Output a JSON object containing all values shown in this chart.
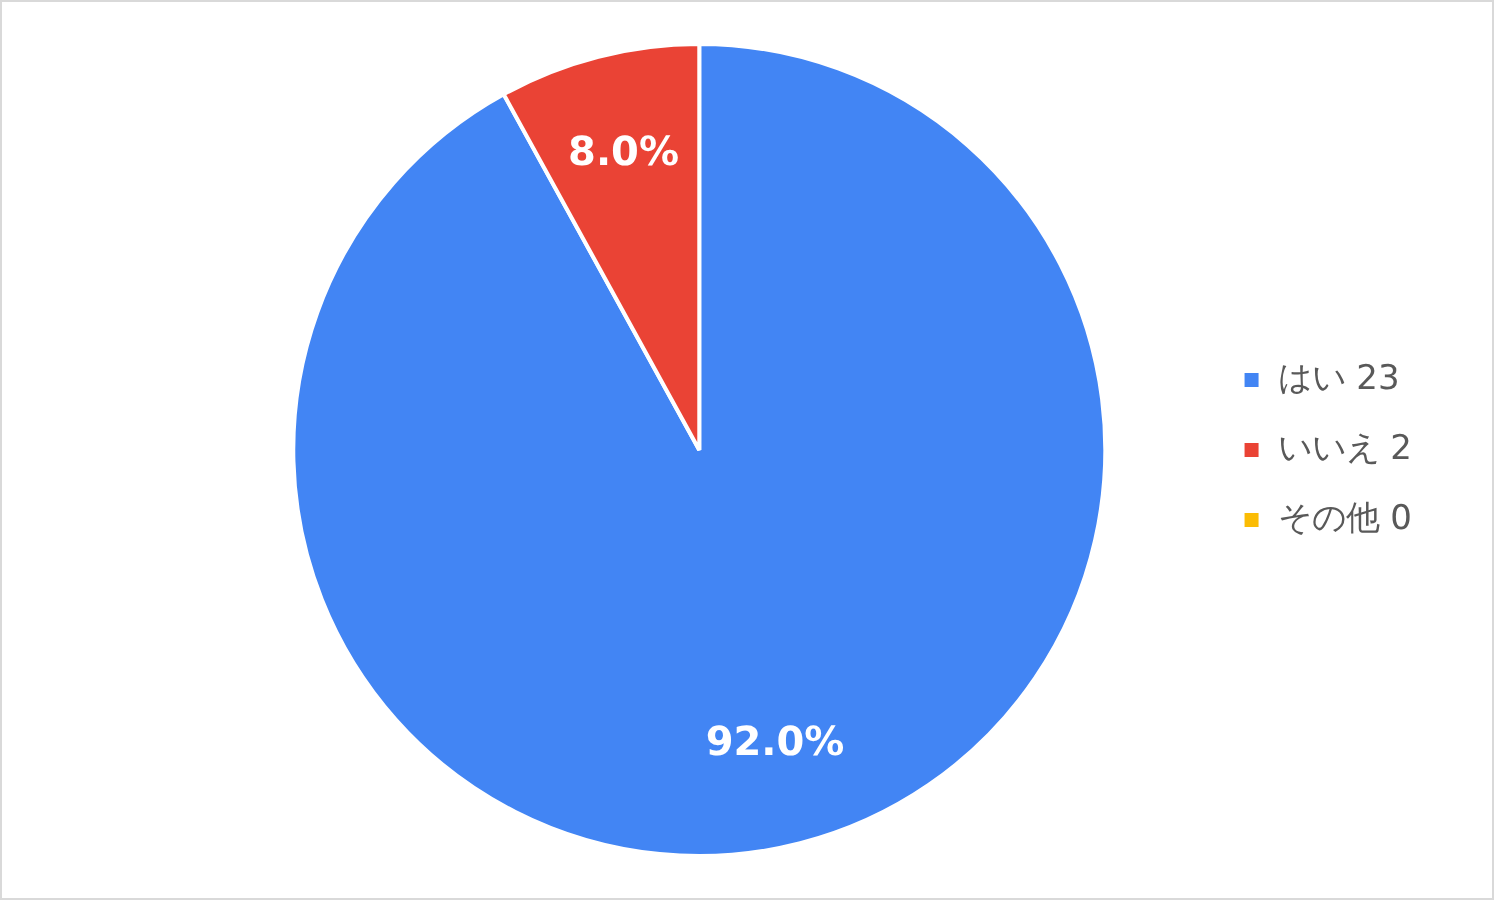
{
  "chart_data": {
    "type": "pie",
    "categories": [
      "はい 23",
      "いいえ 2",
      "その他 0"
    ],
    "values": [
      92.0,
      8.0,
      0
    ],
    "colors": [
      "#4285f4",
      "#ea4335",
      "#fbbc04"
    ],
    "value_labels": [
      "92.0%",
      "8.0%",
      null
    ],
    "legend": "right"
  }
}
